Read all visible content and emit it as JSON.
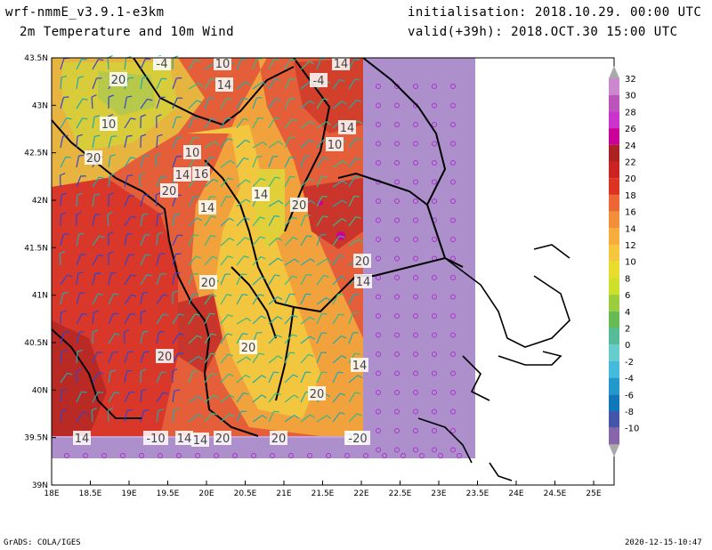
{
  "header": {
    "model": "wrf-nmmE_v3.9.1-e3km",
    "field": "2m Temperature and 10m Wind",
    "init": "initialisation: 2018.10.29. 00:00 UTC",
    "valid": "valid(+39h): 2018.OCT.30 15:00 UTC"
  },
  "footer": {
    "left": "GrADS: COLA/IGES",
    "right": "2020-12-15-10:47"
  },
  "axes": {
    "lon_ticks": [
      "18E",
      "18.5E",
      "19E",
      "19.5E",
      "20E",
      "20.5E",
      "21E",
      "21.5E",
      "22E",
      "22.5E",
      "23E",
      "23.5E",
      "24E",
      "24.5E",
      "25E"
    ],
    "lat_ticks": [
      "43.5N",
      "43N",
      "42.5N",
      "42N",
      "41.5N",
      "41N",
      "40.5N",
      "40N",
      "39.5N",
      "39N"
    ]
  },
  "colorbar": {
    "labels": [
      "32",
      "30",
      "28",
      "26",
      "24",
      "22",
      "20",
      "18",
      "16",
      "14",
      "12",
      "10",
      "8",
      "6",
      "4",
      "2",
      "0",
      "-2",
      "-4",
      "-6",
      "-8",
      "-10"
    ],
    "colors": [
      "#cc88cc",
      "#bb55bb",
      "#cc33cc",
      "#cc0099",
      "#aa2222",
      "#cc2222",
      "#dd3322",
      "#ee6633",
      "#f18f3b",
      "#f7ad3c",
      "#f6c63c",
      "#e8dc2c",
      "#cfe02a",
      "#9ccd3a",
      "#66bb55",
      "#55bb99",
      "#66cccc",
      "#44bbdd",
      "#2299cc",
      "#1177bb",
      "#4455aa",
      "#8866aa"
    ]
  },
  "contour_labels": [
    "-4",
    "10",
    "14",
    "20",
    "14",
    "-4",
    "10",
    "14",
    "20",
    "10",
    "20",
    "10",
    "14",
    "16",
    "14",
    "20",
    "14",
    "20",
    "20",
    "14",
    "20",
    "20",
    "14",
    "20",
    "14",
    "20",
    "20",
    "14",
    "-10",
    "20",
    "14",
    "-20"
  ],
  "legend_colors": {
    "land": "#ffffff",
    "nodata_box": "#ad8fcc",
    "warm": "#dd3322",
    "hot": "#aa2222",
    "border": "#000000"
  }
}
